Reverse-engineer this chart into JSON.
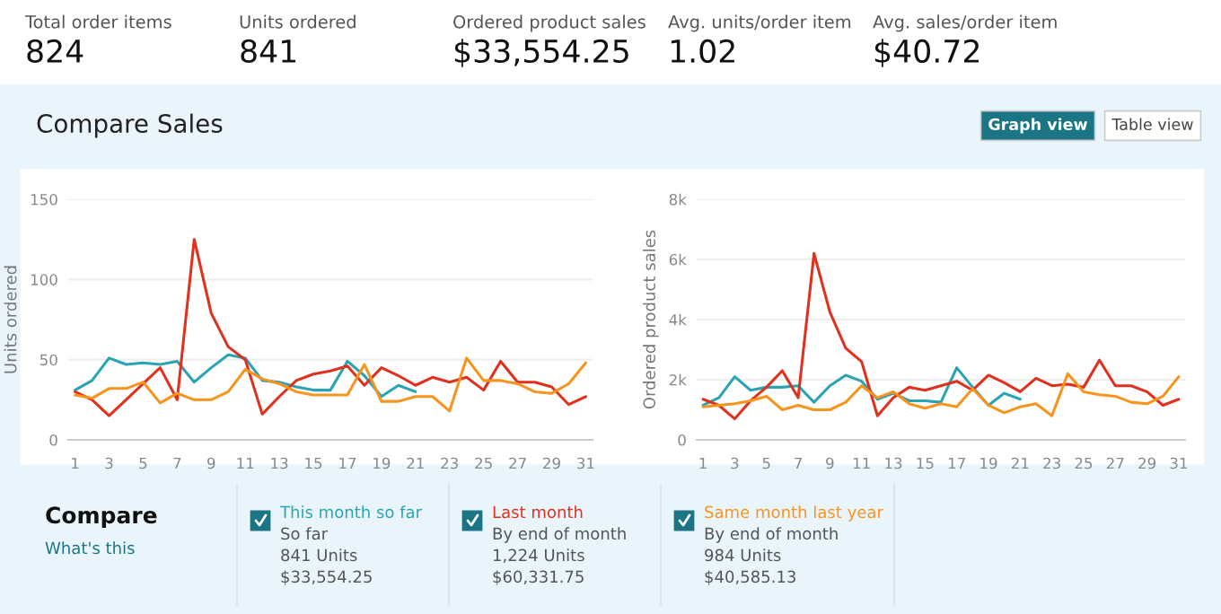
{
  "chart_data": [
    {
      "type": "other",
      "annotations": [
        "Total order items",
        "824",
        "Units ordered",
        "841",
        "Ordered product sales",
        "$33,554.25",
        "Avg. units/order item",
        "1.02",
        "Avg. sales/order item",
        "$40.72",
        "Graph view",
        "Table view"
      ]
    },
    {
      "type": "line",
      "title": "Compare Sales",
      "ylabel": "Units ordered",
      "x": [
        1,
        2,
        3,
        4,
        5,
        6,
        7,
        8,
        9,
        10,
        11,
        12,
        13,
        14,
        15,
        16,
        17,
        18,
        19,
        20,
        21,
        22,
        23,
        24,
        25,
        26,
        27,
        28,
        29,
        30,
        31
      ],
      "xlim": [
        0.6,
        31.4
      ],
      "xticks": [
        1,
        3,
        5,
        7,
        9,
        11,
        13,
        15,
        17,
        19,
        21,
        23,
        25,
        27,
        29,
        31
      ],
      "ylim": [
        0,
        150
      ],
      "yticks": [
        0,
        50,
        100,
        150
      ],
      "grid": "y",
      "legend": "bottom",
      "series": [
        {
          "name": "This month so far",
          "color": "#2aa3b3",
          "values": [
            31,
            37,
            51,
            47,
            48,
            47,
            49,
            36,
            45,
            53,
            51,
            37,
            36,
            33,
            31,
            31,
            49,
            40,
            27,
            34,
            30,
            null,
            null,
            null,
            null,
            null,
            null,
            null,
            null,
            null,
            null
          ]
        },
        {
          "name": "Last month",
          "color": "#e0301e",
          "values": [
            30,
            25,
            15,
            25,
            35,
            45,
            25,
            125,
            79,
            58,
            50,
            16,
            27,
            37,
            41,
            43,
            46,
            34,
            45,
            40,
            34,
            39,
            36,
            39,
            31,
            49,
            36,
            36,
            33,
            22,
            27
          ]
        },
        {
          "name": "Same month last year",
          "color": "#f7941d",
          "values": [
            28,
            26,
            32,
            32,
            36,
            23,
            29,
            25,
            25,
            30,
            44,
            38,
            35,
            30,
            28,
            28,
            28,
            47,
            24,
            24,
            27,
            27,
            18,
            51,
            37,
            37,
            35,
            30,
            29,
            35,
            48
          ]
        }
      ]
    },
    {
      "type": "line",
      "ylabel": "Ordered product sales",
      "x": [
        1,
        2,
        3,
        4,
        5,
        6,
        7,
        8,
        9,
        10,
        11,
        12,
        13,
        14,
        15,
        16,
        17,
        18,
        19,
        20,
        21,
        22,
        23,
        24,
        25,
        26,
        27,
        28,
        29,
        30,
        31
      ],
      "xlim": [
        0.6,
        31.4
      ],
      "xticks": [
        1,
        3,
        5,
        7,
        9,
        11,
        13,
        15,
        17,
        19,
        21,
        23,
        25,
        27,
        29,
        31
      ],
      "ylim": [
        0,
        8000
      ],
      "yticks": [
        0,
        {
          "value": 2000,
          "label": "2k"
        },
        {
          "value": 4000,
          "label": "4k"
        },
        {
          "value": 6000,
          "label": "6k"
        },
        {
          "value": 8000,
          "label": "8k"
        }
      ],
      "grid": "y",
      "series": [
        {
          "color": "#2aa3b3",
          "values": [
            1150,
            1400,
            2100,
            1650,
            1750,
            1750,
            1800,
            1250,
            1800,
            2150,
            1950,
            1350,
            1550,
            1300,
            1300,
            1250,
            2400,
            1750,
            1150,
            1550,
            1350,
            null,
            null,
            null,
            null,
            null,
            null,
            null,
            null,
            null,
            null
          ]
        },
        {
          "color": "#e0301e",
          "values": [
            1350,
            1150,
            700,
            1300,
            1750,
            2300,
            1400,
            6200,
            4250,
            3050,
            2600,
            800,
            1400,
            1750,
            1650,
            1800,
            1950,
            1650,
            2150,
            1900,
            1600,
            2050,
            1800,
            1850,
            1750,
            2650,
            1800,
            1800,
            1600,
            1150,
            1350
          ]
        },
        {
          "color": "#f7941d",
          "values": [
            1100,
            1150,
            1200,
            1300,
            1450,
            1000,
            1150,
            1000,
            1000,
            1250,
            1800,
            1400,
            1600,
            1200,
            1050,
            1200,
            1100,
            1700,
            1150,
            900,
            1100,
            1200,
            800,
            2200,
            1600,
            1500,
            1450,
            1250,
            1200,
            1450,
            2100
          ]
        }
      ]
    },
    {
      "type": "other",
      "title": "Compare",
      "annotations": [
        "What's this",
        "So far",
        "841 Units",
        "$33,554.25",
        "By end of month",
        "1,224 Units",
        "$60,331.75",
        "By end of month",
        "984 Units",
        "$40,585.13"
      ]
    }
  ]
}
